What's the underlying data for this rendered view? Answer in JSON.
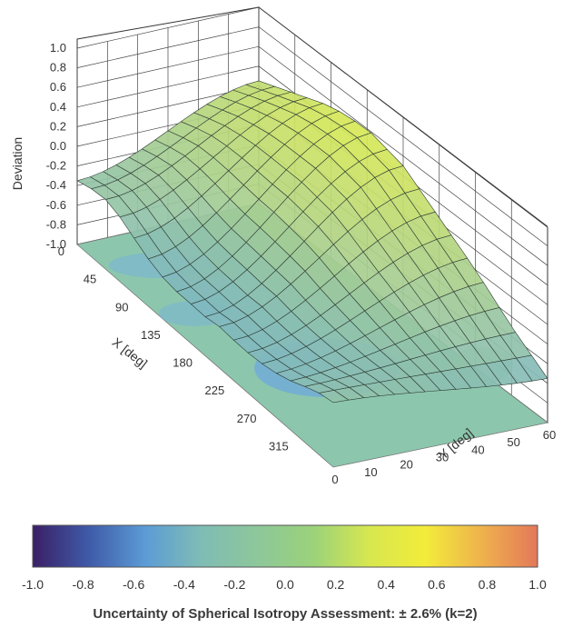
{
  "chart_data": {
    "type": "surface3d",
    "title": "",
    "zlabel": "Deviation",
    "xlabel": "X [deg]",
    "ylabel": "Y [deg]",
    "z_ticks": [
      "1.0",
      "0.8",
      "0.6",
      "0.4",
      "0.2",
      "0.0",
      "-0.2",
      "-0.4",
      "-0.6",
      "-0.8",
      "-1.0"
    ],
    "x_ticks": [
      "0",
      "45",
      "90",
      "135",
      "180",
      "225",
      "270",
      "315"
    ],
    "y_ticks": [
      "0",
      "10",
      "20",
      "30",
      "40",
      "50",
      "60"
    ],
    "xlim": [
      0,
      360
    ],
    "ylim": [
      0,
      60
    ],
    "zlim": [
      -1.0,
      1.0
    ],
    "grid": true,
    "surface_profile": {
      "x": [
        0,
        45,
        90,
        135,
        180,
        225,
        270,
        315,
        360
      ],
      "deviation_at_y0": [
        -0.35,
        -0.35,
        -0.45,
        -0.55,
        -0.65,
        -0.62,
        -0.5,
        -0.45,
        -0.4
      ],
      "deviation_at_y60": [
        0.25,
        0.4,
        0.55,
        0.6,
        0.5,
        0.25,
        0.0,
        -0.3,
        -0.55
      ]
    },
    "colorbar": {
      "ticks": [
        "-1.0",
        "-0.8",
        "-0.6",
        "-0.4",
        "-0.2",
        "0.0",
        "0.2",
        "0.4",
        "0.6",
        "0.8",
        "1.0"
      ],
      "range": [
        -1.0,
        1.0
      ],
      "colors": [
        "#3b1f66",
        "#3f5aa8",
        "#5b9bd5",
        "#7fbcb5",
        "#8dc79a",
        "#9bd27a",
        "#d7e74f",
        "#f2ec3a",
        "#efb24c",
        "#e3785a"
      ],
      "title": "Uncertainty of Spherical Isotropy Assessment: ± 2.6% (k=2)"
    }
  }
}
